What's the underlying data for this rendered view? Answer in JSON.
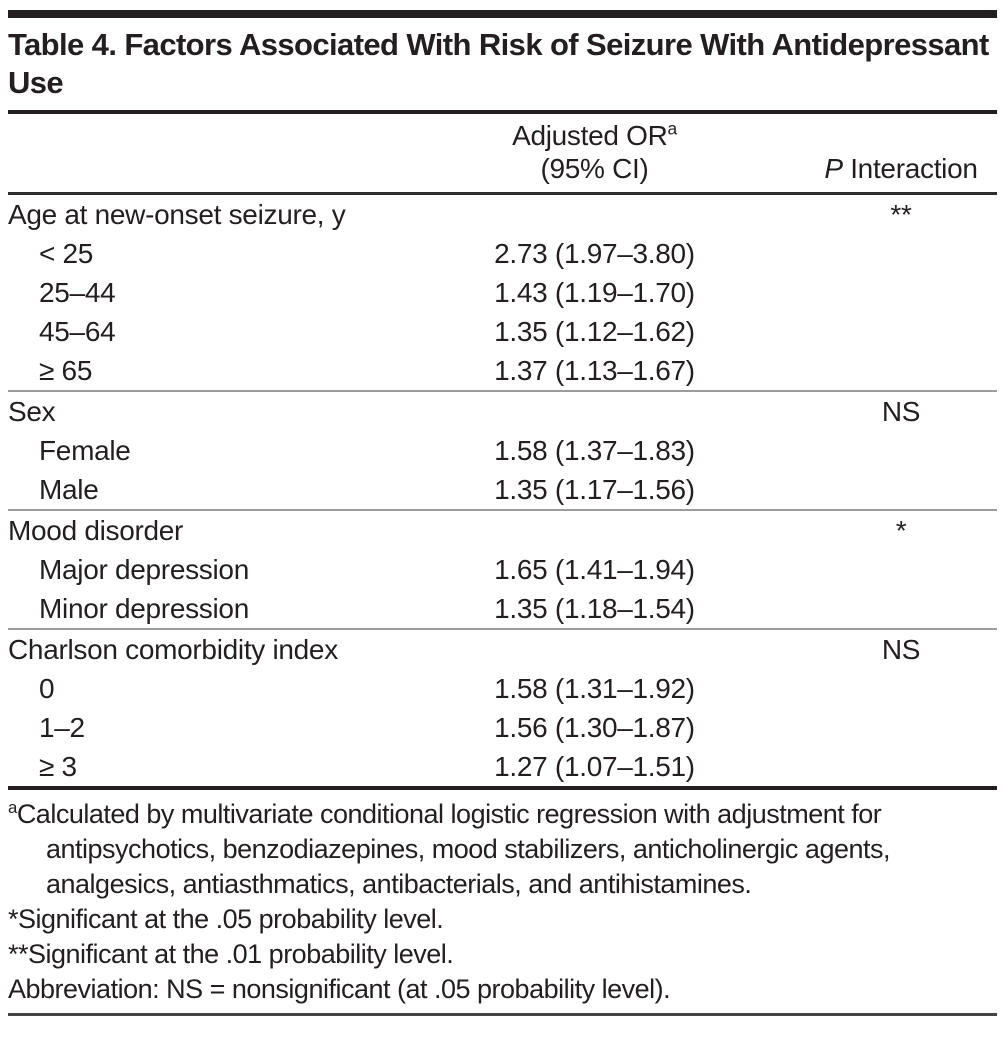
{
  "title": "Table 4. Factors Associated With Risk of Seizure With Antidepressant Use",
  "columns": {
    "or_header_line1": "Adjusted OR",
    "or_header_sup": "a",
    "or_header_line2": "(95% CI)",
    "p_header_italic": "P",
    "p_header_rest": " Interaction"
  },
  "sections": [
    {
      "label": "Age at new-onset seizure, y",
      "p_interaction": "**",
      "rows": [
        {
          "label": "< 25",
          "or": "2.73 (1.97–3.80)"
        },
        {
          "label": "25–44",
          "or": "1.43 (1.19–1.70)"
        },
        {
          "label": "45–64",
          "or": "1.35 (1.12–1.62)"
        },
        {
          "label": "≥ 65",
          "or": "1.37 (1.13–1.67)"
        }
      ]
    },
    {
      "label": "Sex",
      "p_interaction": "NS",
      "rows": [
        {
          "label": "Female",
          "or": "1.58 (1.37–1.83)"
        },
        {
          "label": "Male",
          "or": "1.35 (1.17–1.56)"
        }
      ]
    },
    {
      "label": "Mood disorder",
      "p_interaction": "*",
      "rows": [
        {
          "label": "Major depression",
          "or": "1.65 (1.41–1.94)"
        },
        {
          "label": "Minor depression",
          "or": "1.35 (1.18–1.54)"
        }
      ]
    },
    {
      "label": "Charlson comorbidity index",
      "p_interaction": "NS",
      "rows": [
        {
          "label": "0",
          "or": "1.58 (1.31–1.92)"
        },
        {
          "label": "1–2",
          "or": "1.56 (1.30–1.87)"
        },
        {
          "label": "≥ 3",
          "or": "1.27 (1.07–1.51)"
        }
      ]
    }
  ],
  "footnotes": {
    "a_sup": "a",
    "a_text": "Calculated by multivariate conditional logistic regression with adjustment for antipsychotics, benzodiazepines, mood stabilizers, anticholinergic agents, analgesics, antiasthmatics, antibacterials, and antihistamines.",
    "star": "*Significant at the .05 probability level.",
    "double_star": "**Significant at the .01 probability level.",
    "abbreviation": "Abbreviation: NS = nonsignificant (at .05 probability level)."
  },
  "colors": {
    "text": "#231f20",
    "heavy_rule": "#231f20",
    "section_rule": "#9c9c9c",
    "bottom_rule": "#454545"
  }
}
